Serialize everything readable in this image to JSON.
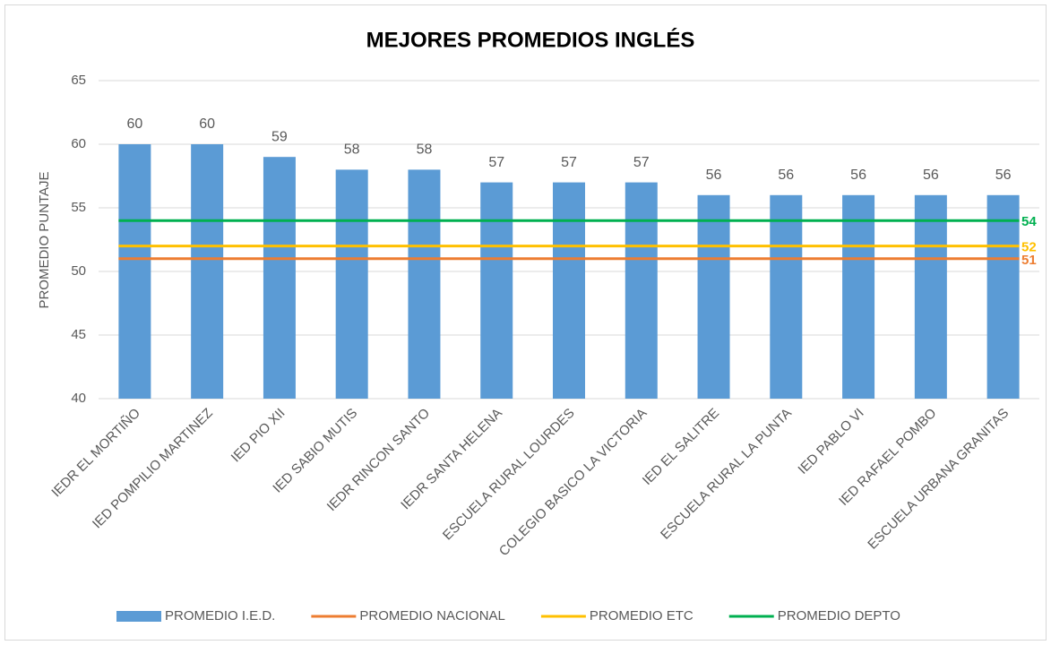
{
  "chart_data": {
    "type": "bar",
    "title": "MEJORES PROMEDIOS INGLÉS",
    "y_label": "PROMEDIO PUNTAJE",
    "categories": [
      "IEDR EL MORTIÑO",
      "IED POMPILIO MARTINEZ",
      "IED PIO XII",
      "IED SABIO MUTIS",
      "IEDR  RINCON SANTO",
      "IEDR SANTA HELENA",
      "ESCUELA RURAL LOURDES",
      "COLEGIO BASICO LA VICTORIA",
      "IED EL SALITRE",
      "ESCUELA RURAL LA PUNTA",
      "IED PABLO VI",
      "IED RAFAEL POMBO",
      "ESCUELA URBANA GRANITAS"
    ],
    "series": [
      {
        "name": "PROMEDIO I.E.D.",
        "type": "bar",
        "color": "#5b9bd5",
        "values": [
          60,
          60,
          59,
          58,
          58,
          57,
          57,
          57,
          56,
          56,
          56,
          56,
          56
        ]
      },
      {
        "name": "PROMEDIO NACIONAL",
        "type": "line",
        "color": "#ed7d31",
        "values": [
          51,
          51,
          51,
          51,
          51,
          51,
          51,
          51,
          51,
          51,
          51,
          51,
          51
        ]
      },
      {
        "name": "PROMEDIO ETC",
        "type": "line",
        "color": "#ffc000",
        "values": [
          52,
          52,
          52,
          52,
          52,
          52,
          52,
          52,
          52,
          52,
          52,
          52,
          52
        ]
      },
      {
        "name": "PROMEDIO DEPTO",
        "type": "line",
        "color": "#00b050",
        "values": [
          54,
          54,
          54,
          54,
          54,
          54,
          54,
          54,
          54,
          54,
          54,
          54,
          54
        ]
      }
    ],
    "ylim": [
      40,
      65
    ],
    "yticks": [
      40,
      45,
      50,
      55,
      60,
      65
    ],
    "grid": true,
    "legend": "bottom"
  }
}
